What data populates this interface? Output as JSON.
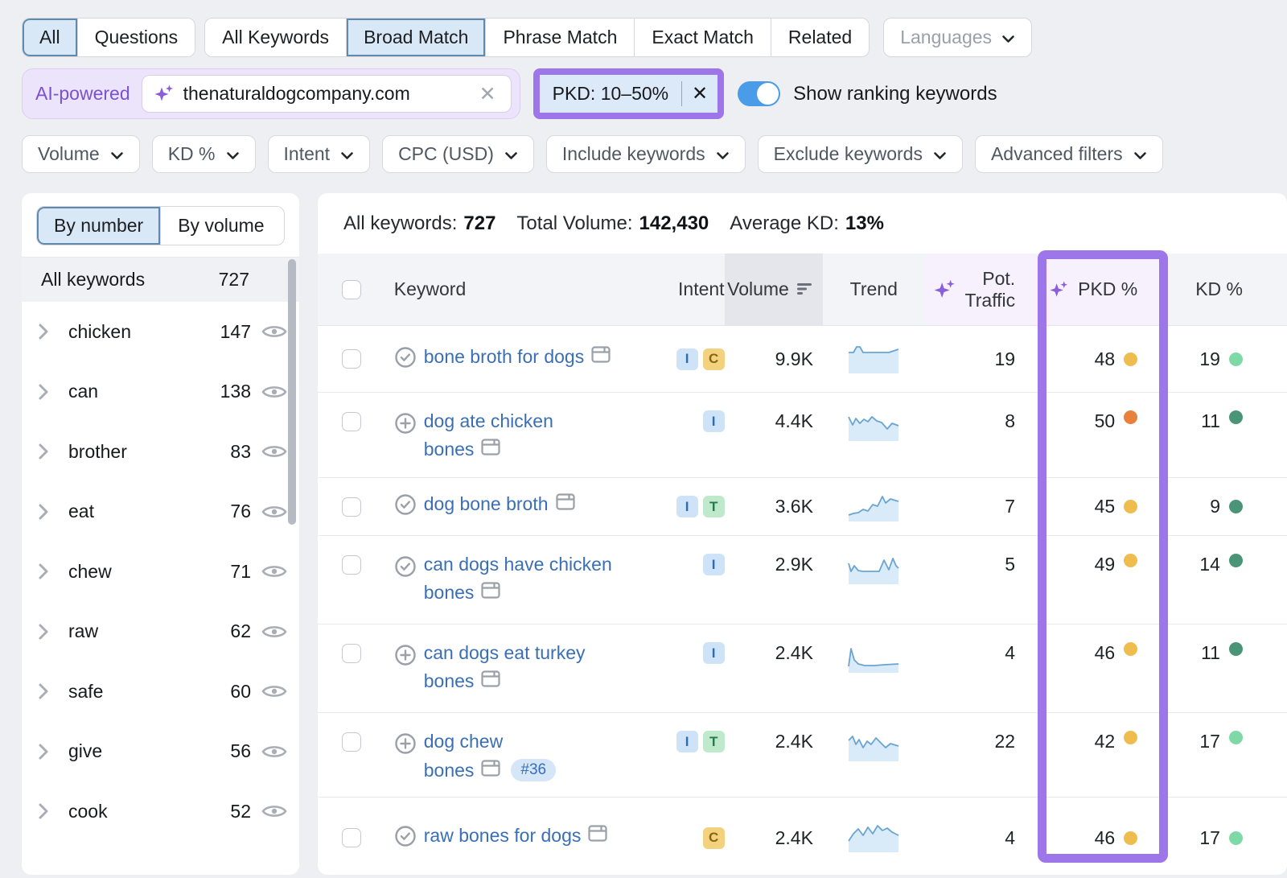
{
  "colors": {
    "accent_purple": "#9d76ea",
    "toggle_blue": "#4a9be8",
    "link_blue": "#3a6fb5",
    "dot_yellow": "#efbd4d",
    "dot_orange": "#e8813c",
    "dot_green_light": "#7fd9a6",
    "dot_green_dark": "#4a9478"
  },
  "tabs": {
    "group1": [
      {
        "label": "All",
        "selected": true
      },
      {
        "label": "Questions",
        "selected": false
      }
    ],
    "group2": [
      {
        "label": "All Keywords",
        "selected": false
      },
      {
        "label": "Broad Match",
        "selected": true
      },
      {
        "label": "Phrase Match",
        "selected": false
      },
      {
        "label": "Exact Match",
        "selected": false
      },
      {
        "label": "Related",
        "selected": false
      }
    ],
    "languages_label": "Languages"
  },
  "search_row": {
    "ai_badge": "AI-powered",
    "query": "thenaturaldogcompany.com",
    "pkd_chip": "PKD: 10–50%",
    "toggle_label": "Show ranking keywords",
    "toggle_on": true
  },
  "filter_chips": [
    "Volume",
    "KD %",
    "Intent",
    "CPC (USD)",
    "Include keywords",
    "Exclude keywords",
    "Advanced filters"
  ],
  "sidebar": {
    "view_tabs": [
      {
        "label": "By number",
        "selected": true
      },
      {
        "label": "By volume",
        "selected": false
      }
    ],
    "all_row": {
      "label": "All keywords",
      "count": "727"
    },
    "groups": [
      {
        "label": "chicken",
        "count": "147"
      },
      {
        "label": "can",
        "count": "138"
      },
      {
        "label": "brother",
        "count": "83"
      },
      {
        "label": "eat",
        "count": "76"
      },
      {
        "label": "chew",
        "count": "71"
      },
      {
        "label": "raw",
        "count": "62"
      },
      {
        "label": "safe",
        "count": "60"
      },
      {
        "label": "give",
        "count": "56"
      },
      {
        "label": "cook",
        "count": "52"
      }
    ]
  },
  "summary": [
    {
      "label": "All keywords:",
      "value": "727"
    },
    {
      "label": "Total Volume:",
      "value": "142,430"
    },
    {
      "label": "Average KD:",
      "value": "13%"
    }
  ],
  "table": {
    "headers": {
      "keyword": "Keyword",
      "intent": "Intent",
      "volume": "Volume",
      "trend": "Trend",
      "pot_traffic_line1": "Pot.",
      "pot_traffic_line2": "Traffic",
      "pkd": "PKD %",
      "kd": "KD %"
    },
    "rows": [
      {
        "lines": [
          "bone broth for dogs"
        ],
        "status": "check",
        "intents": [
          "I",
          "C"
        ],
        "volume": "9.9K",
        "trend": "2,12 8,12 12,5 16,5 20,12 40,12 52,12 64,8",
        "pot": "19",
        "pkd": "48",
        "pkd_level": "yellow",
        "kd": "19",
        "kd_level": "light"
      },
      {
        "lines": [
          "dog ate chicken",
          "bones"
        ],
        "status": "plus",
        "intents": [
          "I"
        ],
        "volume": "4.4K",
        "trend": "2,8 7,18 11,10 16,16 21,11 26,14 31,8 37,13 43,15 50,23 56,16 64,19",
        "pot": "8",
        "pkd": "50",
        "pkd_level": "orange",
        "kd": "11",
        "kd_level": "dark"
      },
      {
        "lines": [
          "dog bone broth"
        ],
        "status": "check",
        "intents": [
          "I",
          "T"
        ],
        "volume": "3.6K",
        "trend": "2,30 8,28 14,27 20,23 26,25 32,17 38,19 44,7 48,15 54,10 64,13",
        "pot": "7",
        "pkd": "45",
        "pkd_level": "yellow",
        "kd": "9",
        "kd_level": "dark"
      },
      {
        "lines": [
          "can dogs have chicken",
          "bones"
        ],
        "status": "check",
        "intents": [
          "I"
        ],
        "volume": "2.9K",
        "trend": "2,12 5,22 9,15 14,21 20,22 30,22 40,22 46,8 52,20 57,6 61,15 64,18",
        "pot": "5",
        "pkd": "49",
        "pkd_level": "yellow",
        "kd": "14",
        "kd_level": "dark"
      },
      {
        "lines": [
          "can dogs eat turkey",
          "bones"
        ],
        "status": "plus",
        "intents": [
          "I"
        ],
        "volume": "2.4K",
        "trend": "2,30 5,8 9,22 14,27 22,29 34,29 46,28 64,27",
        "pot": "4",
        "pkd": "46",
        "pkd_level": "yellow",
        "kd": "11",
        "kd_level": "dark"
      },
      {
        "lines": [
          "dog chew",
          "bones"
        ],
        "status": "plus",
        "rank": "#36",
        "intents": [
          "I",
          "T"
        ],
        "volume": "2.4K",
        "trend": "2,12 7,7 11,17 15,11 20,21 25,13 30,17 36,9 42,15 48,21 54,16 64,19",
        "pot": "22",
        "pkd": "42",
        "pkd_level": "yellow",
        "kd": "17",
        "kd_level": "light"
      },
      {
        "lines": [
          "raw bones for dogs"
        ],
        "status": "check",
        "intents": [
          "C"
        ],
        "volume": "2.4K",
        "trend": "2,24 8,15 14,9 20,17 26,7 32,15 38,5 44,11 50,8 56,13 64,17",
        "pot": "4",
        "pkd": "46",
        "pkd_level": "yellow",
        "kd": "17",
        "kd_level": "light"
      }
    ]
  }
}
